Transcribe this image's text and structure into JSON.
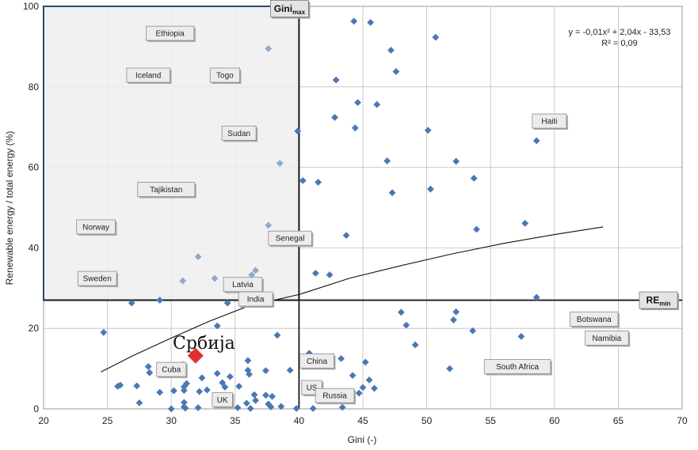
{
  "chart_data": {
    "type": "scatter",
    "xlabel": "Gini (-)",
    "ylabel": "Renewable energy /  total energy (%)",
    "xlim": [
      20,
      70
    ],
    "ylim": [
      0,
      100
    ],
    "xticks": [
      20,
      25,
      30,
      35,
      40,
      45,
      50,
      55,
      60,
      65,
      70
    ],
    "yticks": [
      0,
      20,
      40,
      60,
      80,
      100
    ],
    "grid": true,
    "colors": {
      "point": "#4a78b4",
      "point_light": "#8fa9c7",
      "highlight": "#e03030",
      "threshold": "#1a1a1a",
      "shaded_region": "#efefef"
    },
    "threshold_x": 40,
    "threshold_y": 27,
    "threshold_labels": {
      "gini_max": {
        "main": "Gini",
        "sub": "max"
      },
      "re_min": {
        "main": "RE",
        "sub": "min"
      }
    },
    "shaded_region": {
      "x": [
        20,
        40
      ],
      "y": [
        27,
        100
      ]
    },
    "equation": "y = -0,01x² + 2,04x - 33,53",
    "r_squared": "R² = 0,09",
    "trend_curve": [
      [
        24.5,
        9.2
      ],
      [
        27,
        13.2
      ],
      [
        30,
        17.6
      ],
      [
        33,
        21.8
      ],
      [
        36,
        25.5
      ],
      [
        40,
        28.4
      ],
      [
        44,
        32.5
      ],
      [
        48,
        35.6
      ],
      [
        52,
        38.5
      ],
      [
        56,
        41.1
      ],
      [
        60,
        43.3
      ],
      [
        63.8,
        45.2
      ]
    ],
    "highlight": {
      "label": "Србија",
      "x": 31.9,
      "y": 13.2
    },
    "points": [
      [
        24.7,
        19
      ],
      [
        25.8,
        5.6
      ],
      [
        26,
        5.9
      ],
      [
        26.9,
        26.3
      ],
      [
        27.3,
        5.7
      ],
      [
        27.5,
        1.5
      ],
      [
        28.2,
        10.5
      ],
      [
        28.3,
        9
      ],
      [
        29.1,
        27
      ],
      [
        29.1,
        4.1
      ],
      [
        30,
        0
      ],
      [
        30.2,
        4.5
      ],
      [
        30.9,
        11
      ],
      [
        31,
        5.5
      ],
      [
        31,
        4.6
      ],
      [
        31,
        1.6
      ],
      [
        31,
        0.5
      ],
      [
        31.1,
        0.2
      ],
      [
        31.2,
        6.3
      ],
      [
        32.1,
        0.3
      ],
      [
        32.2,
        4.3
      ],
      [
        32.4,
        7.7
      ],
      [
        32.8,
        4.7
      ],
      [
        33.6,
        20.6
      ],
      [
        33.6,
        8.8
      ],
      [
        34,
        6.5
      ],
      [
        34.2,
        5.4
      ],
      [
        34.6,
        8
      ],
      [
        34.4,
        26.3
      ],
      [
        35.3,
        5.6
      ],
      [
        35.2,
        0.3
      ],
      [
        35.9,
        1.4
      ],
      [
        36,
        9.6
      ],
      [
        36.1,
        8.6
      ],
      [
        36,
        12
      ],
      [
        36.2,
        0.1
      ],
      [
        36.5,
        3.5
      ],
      [
        36.6,
        2.1
      ],
      [
        37.4,
        9.5
      ],
      [
        37.4,
        3.4
      ],
      [
        37.6,
        1.2
      ],
      [
        37.8,
        0.5
      ],
      [
        37.9,
        3.1
      ],
      [
        38.3,
        18.3
      ],
      [
        38.6,
        0.6
      ],
      [
        39.3,
        9.6
      ],
      [
        39.8,
        0.1
      ],
      [
        40.8,
        13.8
      ],
      [
        41.1,
        0.1
      ],
      [
        43.3,
        12.5
      ],
      [
        43.4,
        0.4
      ],
      [
        44.2,
        8.3
      ],
      [
        44.7,
        3.9
      ],
      [
        45,
        5.3
      ],
      [
        45.2,
        11.6
      ],
      [
        45.5,
        7.2
      ],
      [
        45.9,
        5.1
      ],
      [
        43.7,
        43.1
      ],
      [
        41.3,
        33.7
      ],
      [
        42.4,
        33.3
      ],
      [
        40.3,
        56.7
      ],
      [
        41.5,
        56.3
      ],
      [
        39.9,
        69
      ],
      [
        42.9,
        81.7
      ],
      [
        42.8,
        72.4
      ],
      [
        44.4,
        69.8
      ],
      [
        44.6,
        76.1
      ],
      [
        44.3,
        96.3
      ],
      [
        45.6,
        96
      ],
      [
        46.1,
        75.6
      ],
      [
        47.2,
        89.1
      ],
      [
        47.6,
        83.8
      ],
      [
        46.9,
        61.6
      ],
      [
        47.3,
        53.7
      ],
      [
        48,
        24
      ],
      [
        48.4,
        20.8
      ],
      [
        49.1,
        15.9
      ],
      [
        50.1,
        69.2
      ],
      [
        50.3,
        54.6
      ],
      [
        50.7,
        92.3
      ],
      [
        51.8,
        10
      ],
      [
        52.1,
        22.1
      ],
      [
        52.3,
        24.1
      ],
      [
        52.3,
        61.5
      ],
      [
        53.6,
        19.4
      ],
      [
        53.7,
        57.3
      ],
      [
        53.9,
        44.6
      ],
      [
        57.4,
        18
      ],
      [
        57.7,
        46.1
      ],
      [
        58.6,
        66.6
      ],
      [
        58.6,
        27.7
      ]
    ],
    "light_points": [
      [
        37.6,
        89.5
      ],
      [
        38.5,
        61
      ],
      [
        37.6,
        45.6
      ],
      [
        32.1,
        37.8
      ],
      [
        33.4,
        32.4
      ],
      [
        36.6,
        34.4
      ],
      [
        36.3,
        33.3
      ],
      [
        30.9,
        31.8
      ],
      [
        35.5,
        29.2
      ]
    ],
    "annotations": [
      {
        "label": "Ethiopia",
        "x": 29.9,
        "y": 93.3
      },
      {
        "label": "Iceland",
        "x": 28.2,
        "y": 82.9
      },
      {
        "label": "Togo",
        "x": 34.2,
        "y": 82.9
      },
      {
        "label": "Sudan",
        "x": 35.3,
        "y": 68.5
      },
      {
        "label": "Tajikistan",
        "x": 29.6,
        "y": 54.5
      },
      {
        "label": "Norway",
        "x": 24.1,
        "y": 45.2
      },
      {
        "label": "Senegal",
        "x": 39.3,
        "y": 42.4
      },
      {
        "label": "Sweden",
        "x": 24.2,
        "y": 32.4
      },
      {
        "label": "Latvia",
        "x": 35.6,
        "y": 30.9
      },
      {
        "label": "India",
        "x": 36.6,
        "y": 27.3
      },
      {
        "label": "Haiti",
        "x": 59.6,
        "y": 71.5
      },
      {
        "label": "Botswana",
        "x": 63.1,
        "y": 22.3
      },
      {
        "label": "Namibia",
        "x": 64.1,
        "y": 17.6
      },
      {
        "label": "China",
        "x": 41.4,
        "y": 11.9
      },
      {
        "label": "Cuba",
        "x": 30,
        "y": 9.8
      },
      {
        "label": "South Africa",
        "x": 57.1,
        "y": 10.5
      },
      {
        "label": "US",
        "x": 41,
        "y": 5.3
      },
      {
        "label": "Russia",
        "x": 42.8,
        "y": 3.3
      },
      {
        "label": "UK",
        "x": 34,
        "y": 2.3
      }
    ]
  }
}
